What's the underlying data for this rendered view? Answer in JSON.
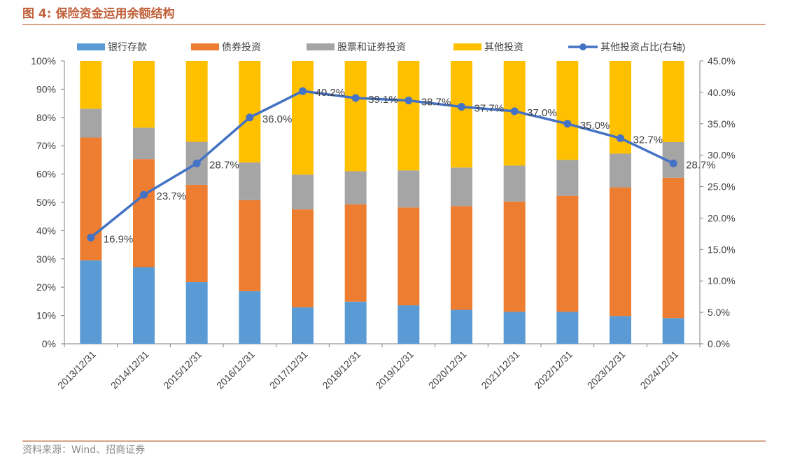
{
  "figure": {
    "title_prefix": "图 4:",
    "title_text": "保险资金运用余额结构",
    "source": "资料来源：Wind、招商证券"
  },
  "chart_data": {
    "type": "bar",
    "stacked": true,
    "categories": [
      "2013/12/31",
      "2014/12/31",
      "2015/12/31",
      "2016/12/31",
      "2017/12/31",
      "2018/12/31",
      "2019/12/31",
      "2020/12/31",
      "2021/12/31",
      "2022/12/31",
      "2023/12/31",
      "2024/12/31"
    ],
    "series": [
      {
        "name": "银行存款",
        "color": "#5b9bd5",
        "values": [
          29.5,
          27.1,
          21.8,
          18.6,
          12.9,
          14.9,
          13.6,
          12.0,
          11.3,
          11.3,
          9.8,
          9.1
        ]
      },
      {
        "name": "债券投资",
        "color": "#ed7d31",
        "values": [
          43.4,
          38.2,
          34.4,
          32.2,
          34.6,
          34.4,
          34.6,
          36.7,
          39.0,
          41.0,
          45.5,
          49.6
        ]
      },
      {
        "name": "股票和证券投资",
        "color": "#a5a5a5",
        "values": [
          10.2,
          11.1,
          15.2,
          13.3,
          12.3,
          11.7,
          13.1,
          13.6,
          12.7,
          12.7,
          11.9,
          12.6
        ]
      },
      {
        "name": "其他投资",
        "color": "#ffc000",
        "values": [
          16.9,
          23.6,
          28.6,
          35.9,
          40.2,
          39.0,
          38.7,
          37.7,
          37.0,
          35.0,
          32.8,
          28.7
        ]
      }
    ],
    "line_series": {
      "name": "其他投资占比(右轴)",
      "color": "#4472c4",
      "axis": "right",
      "values": [
        16.9,
        23.7,
        28.7,
        36.0,
        40.2,
        39.1,
        38.7,
        37.7,
        37.0,
        35.0,
        32.7,
        28.7
      ],
      "labels": [
        "16.9%",
        "23.7%",
        "28.7%",
        "36.0%",
        "40.2%",
        "39.1%",
        "38.7%",
        "37.7%",
        "37.0%",
        "35.0%",
        "32.7%",
        "28.7%"
      ]
    },
    "y_left": {
      "min": 0,
      "max": 100,
      "step": 10,
      "tick_labels": [
        "0%",
        "10%",
        "20%",
        "30%",
        "40%",
        "50%",
        "60%",
        "70%",
        "80%",
        "90%",
        "100%"
      ]
    },
    "y_right": {
      "min": 0,
      "max": 45,
      "step": 5,
      "tick_labels": [
        "0.0%",
        "5.0%",
        "10.0%",
        "15.0%",
        "20.0%",
        "25.0%",
        "30.0%",
        "35.0%",
        "40.0%",
        "45.0%"
      ]
    },
    "grid": false,
    "legend_position": "top"
  }
}
